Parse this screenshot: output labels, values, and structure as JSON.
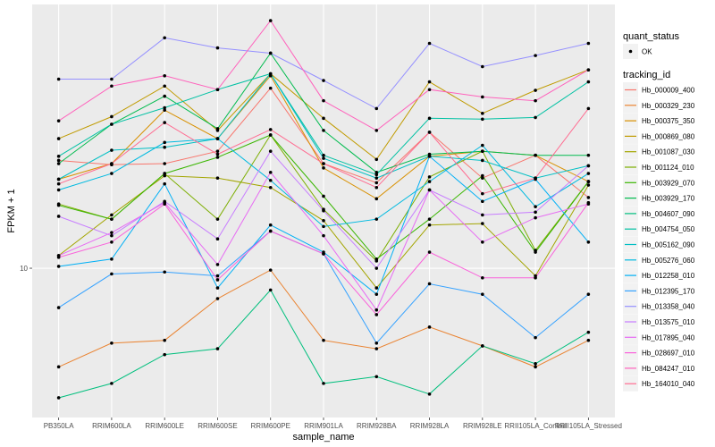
{
  "chart_data": {
    "type": "line",
    "title": "",
    "xlabel": "sample_name",
    "ylabel": "FPKM + 1",
    "y_scale": "log10",
    "ylim": [
      4.5,
      41
    ],
    "y_ticks": [
      {
        "value": 10,
        "label": "10"
      }
    ],
    "grid": true,
    "categories": [
      "PB350LA",
      "RRIM600LA",
      "RRIM600LE",
      "RRIM600SE",
      "RRIM600PE",
      "RRIM901LA",
      "RRIM928BA",
      "RRIM928LA",
      "RRIM928LE",
      "RRII105LA_Control",
      "RRII105LA_Stressed"
    ],
    "legend_position": "right",
    "legend_shape": {
      "title": "quant_status",
      "entries": [
        {
          "label": "OK",
          "marker": "point"
        }
      ]
    },
    "legend_color": {
      "title": "tracking_id"
    },
    "series": [
      {
        "name": "Hb_000009_400",
        "color": "#F8766D",
        "values": [
          17.8,
          17.4,
          17.5,
          18.7,
          26.2,
          17.5,
          15.8,
          20.7,
          16.2,
          18.3,
          14.6
        ]
      },
      {
        "name": "Hb_000329_230",
        "color": "#EA8331",
        "values": [
          5.9,
          6.7,
          6.8,
          8.5,
          9.9,
          6.8,
          6.5,
          7.3,
          6.6,
          5.9,
          6.8
        ]
      },
      {
        "name": "Hb_000375_350",
        "color": "#D89000",
        "values": [
          16.1,
          17.5,
          23.3,
          20.0,
          28.0,
          17.1,
          14.5,
          18.2,
          18.7,
          18.3,
          15.9
        ]
      },
      {
        "name": "Hb_000869_080",
        "color": "#C09B00",
        "values": [
          20.0,
          22.5,
          26.5,
          20.9,
          28.3,
          22.3,
          17.9,
          27.1,
          22.9,
          25.9,
          28.9
        ]
      },
      {
        "name": "Hb_001087_030",
        "color": "#A3A500",
        "values": [
          10.7,
          13.3,
          16.4,
          16.2,
          15.4,
          12.9,
          9.0,
          12.6,
          12.7,
          9.6,
          15.6
        ]
      },
      {
        "name": "Hb_001124_010",
        "color": "#7CAE00",
        "values": [
          14.1,
          13.0,
          16.6,
          13.0,
          20.4,
          13.7,
          10.4,
          16.3,
          18.7,
          11.0,
          15.9
        ]
      },
      {
        "name": "Hb_003929_070",
        "color": "#39B600",
        "values": [
          14.0,
          13.0,
          16.6,
          18.1,
          20.4,
          14.7,
          10.5,
          13.0,
          16.4,
          10.9,
          15.9
        ]
      },
      {
        "name": "Hb_003929_170",
        "color": "#00BB4E",
        "values": [
          17.5,
          21.6,
          25.1,
          21.1,
          31.6,
          20.9,
          16.7,
          18.4,
          18.7,
          18.3,
          18.3
        ]
      },
      {
        "name": "Hb_004607_090",
        "color": "#00BF7D",
        "values": [
          5.0,
          5.4,
          6.3,
          6.5,
          8.9,
          5.4,
          5.6,
          5.1,
          6.6,
          6.0,
          7.1
        ]
      },
      {
        "name": "Hb_004754_050",
        "color": "#00C1A3",
        "values": [
          18.2,
          21.6,
          23.6,
          26.0,
          28.3,
          18.3,
          16.5,
          22.3,
          22.2,
          22.4,
          27.1
        ]
      },
      {
        "name": "Hb_005162_090",
        "color": "#00BFC4",
        "values": [
          16.1,
          18.8,
          19.1,
          20.0,
          28.3,
          18.0,
          16.2,
          18.2,
          17.8,
          16.2,
          17.3
        ]
      },
      {
        "name": "Hb_005276_060",
        "color": "#00BAE0",
        "values": [
          15.2,
          16.6,
          19.6,
          20.0,
          16.0,
          12.5,
          13.0,
          15.9,
          19.3,
          13.9,
          16.6
        ]
      },
      {
        "name": "Hb_012258_010",
        "color": "#00B0F6",
        "values": [
          10.1,
          10.5,
          15.7,
          9.0,
          12.6,
          10.9,
          8.7,
          18.2,
          14.3,
          16.1,
          11.5
        ]
      },
      {
        "name": "Hb_012395_170",
        "color": "#35A2FF",
        "values": [
          8.1,
          9.7,
          9.8,
          9.6,
          12.2,
          10.8,
          6.7,
          9.2,
          8.7,
          6.9,
          8.7
        ]
      },
      {
        "name": "Hb_013358_040",
        "color": "#9590FF",
        "values": [
          27.5,
          27.5,
          34.3,
          32.5,
          31.6,
          27.3,
          23.5,
          33.3,
          29.4,
          31.2,
          33.3
        ]
      },
      {
        "name": "Hb_013575_010",
        "color": "#C77CFF",
        "values": [
          13.2,
          11.9,
          14.3,
          11.7,
          18.7,
          13.6,
          10.0,
          15.2,
          13.3,
          13.5,
          17.3
        ]
      },
      {
        "name": "Hb_017895_040",
        "color": "#E76BF3",
        "values": [
          10.7,
          12.1,
          14.2,
          10.2,
          16.7,
          11.9,
          8.0,
          15.2,
          11.5,
          13.1,
          14.1
        ]
      },
      {
        "name": "Hb_028697_010",
        "color": "#FA62DB",
        "values": [
          10.6,
          11.5,
          14.1,
          9.4,
          12.2,
          10.8,
          7.8,
          10.9,
          9.5,
          9.5,
          14.2
        ]
      },
      {
        "name": "Hb_084247_010",
        "color": "#FF62BC",
        "values": [
          22.0,
          26.5,
          28.0,
          26.0,
          37.6,
          24.5,
          20.9,
          26.0,
          25.0,
          24.5,
          28.9
        ]
      },
      {
        "name": "Hb_164010_040",
        "color": "#FF6C91",
        "values": [
          15.7,
          17.5,
          21.8,
          18.4,
          21.0,
          17.5,
          15.4,
          20.7,
          14.9,
          16.2,
          23.5
        ]
      }
    ]
  }
}
